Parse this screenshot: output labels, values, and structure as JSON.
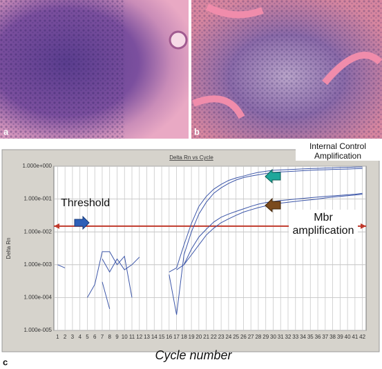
{
  "panel_labels": [
    "a",
    "b",
    "c"
  ],
  "chart_data": {
    "type": "line",
    "title": "Delta Rn vs Cycle",
    "y_label": "Delta Rn",
    "x_label": "Cycle number",
    "log_y": true,
    "grid": true,
    "annotations": [
      "Internal Control Amplification",
      "Threshold",
      "Mbr amplification"
    ],
    "threshold": 0.015,
    "threshold_color": "#c0392b",
    "xlim": [
      0.5,
      42.5
    ],
    "xticks": [
      1,
      2,
      3,
      4,
      5,
      6,
      7,
      8,
      9,
      10,
      11,
      12,
      13,
      14,
      15,
      16,
      17,
      18,
      19,
      20,
      21,
      22,
      23,
      24,
      25,
      26,
      27,
      28,
      29,
      30,
      31,
      32,
      33,
      34,
      35,
      36,
      37,
      38,
      39,
      40,
      41,
      42
    ],
    "ylim": [
      1e-05,
      1
    ],
    "yticks": [
      {
        "value": 1e-05,
        "label": "1.000e-005"
      },
      {
        "value": 0.0001,
        "label": "1.000e-004"
      },
      {
        "value": 0.001,
        "label": "1.000e-003"
      },
      {
        "value": 0.01,
        "label": "1.000e-002"
      },
      {
        "value": 0.1,
        "label": "1.000e-001"
      },
      {
        "value": 1,
        "label": "1.000e+000"
      }
    ],
    "series": [
      {
        "color": "#3b55a8",
        "x": [
          16,
          17,
          18,
          19,
          20,
          21,
          22,
          23,
          24,
          25,
          26,
          27,
          28,
          29,
          30,
          31,
          32,
          33,
          34,
          35,
          36,
          37,
          38,
          39,
          40,
          41,
          42
        ],
        "values": [
          0.0006,
          0.0008,
          0.004,
          0.018,
          0.06,
          0.12,
          0.2,
          0.28,
          0.37,
          0.44,
          0.5,
          0.58,
          0.65,
          0.7,
          0.75,
          0.77,
          0.79,
          0.81,
          0.83,
          0.85,
          0.86,
          0.88,
          0.89,
          0.91,
          0.92,
          0.94,
          0.95
        ]
      },
      {
        "color": "#3b55a8",
        "x": [
          16,
          17,
          18,
          19,
          20,
          21,
          22,
          23,
          24,
          25,
          26,
          27,
          28,
          29,
          30,
          31,
          32,
          33,
          34,
          35,
          36,
          37,
          38,
          39,
          40,
          41,
          42
        ],
        "values": [
          0.0005,
          3e-05,
          0.002,
          0.01,
          0.035,
          0.08,
          0.15,
          0.22,
          0.3,
          0.38,
          0.45,
          0.5,
          0.55,
          0.6,
          0.65,
          0.67,
          0.69,
          0.71,
          0.73,
          0.75,
          0.77,
          0.78,
          0.8,
          0.81,
          0.82,
          0.84,
          0.85
        ]
      },
      {
        "color": "#3b55a8",
        "x": [
          17,
          18,
          19,
          20,
          21,
          22,
          23,
          24,
          25,
          26,
          27,
          28,
          29,
          30,
          31,
          32,
          33,
          34,
          35,
          36,
          37,
          38,
          39,
          40,
          41,
          42
        ],
        "values": [
          0.0007,
          0.001,
          0.003,
          0.007,
          0.012,
          0.02,
          0.028,
          0.035,
          0.042,
          0.05,
          0.06,
          0.07,
          0.078,
          0.085,
          0.09,
          0.095,
          0.1,
          0.105,
          0.11,
          0.115,
          0.12,
          0.125,
          0.13,
          0.135,
          0.14,
          0.15
        ]
      },
      {
        "color": "#3b55a8",
        "x": [
          18,
          19,
          20,
          21,
          22,
          23,
          24,
          25,
          26,
          27,
          28,
          29,
          30,
          31,
          32,
          33,
          34,
          35,
          36,
          37,
          38,
          39,
          40,
          41,
          42
        ],
        "values": [
          0.001,
          0.002,
          0.004,
          0.008,
          0.013,
          0.019,
          0.025,
          0.032,
          0.04,
          0.047,
          0.055,
          0.062,
          0.07,
          0.075,
          0.08,
          0.085,
          0.09,
          0.095,
          0.1,
          0.108,
          0.115,
          0.12,
          0.127,
          0.133,
          0.14
        ]
      },
      {
        "color": "#3b55a8",
        "x": [
          1,
          2
        ],
        "values": [
          0.001,
          0.0008
        ]
      },
      {
        "color": "#3b55a8",
        "x": [
          5,
          6,
          7,
          8,
          9,
          10,
          11
        ],
        "values": [
          0.0001,
          0.00025,
          0.0025,
          0.0025,
          0.001,
          0.0018,
          0.0001
        ]
      },
      {
        "color": "#3b55a8",
        "x": [
          7,
          8,
          9,
          10,
          11,
          12
        ],
        "values": [
          0.0015,
          0.0006,
          0.0015,
          0.0007,
          0.001,
          0.0017
        ]
      },
      {
        "color": "#3b55a8",
        "x": [
          7,
          8
        ],
        "values": [
          0.0003,
          4.5e-05
        ]
      }
    ]
  }
}
